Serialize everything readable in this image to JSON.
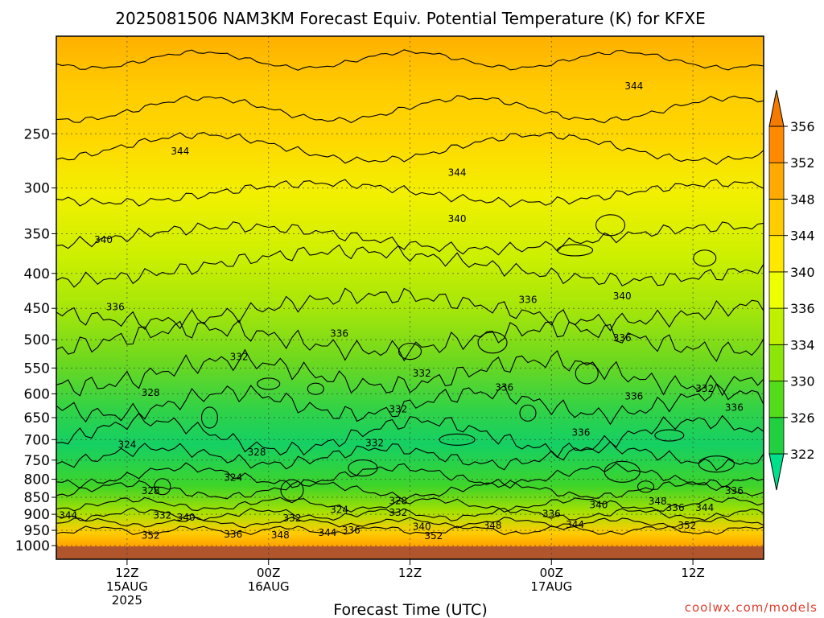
{
  "chart_data": {
    "type": "heatmap",
    "title": "2025081506 NAM3KM Forecast Equiv. Potential Temperature (K) for KFXE",
    "xlabel": "Forecast Time (UTC)",
    "ylabel": "",
    "y_axis": {
      "scale": "log-pressure",
      "range": [
        1000,
        180
      ],
      "tick_labels": [
        "250",
        "300",
        "350",
        "400",
        "450",
        "500",
        "550",
        "600",
        "650",
        "700",
        "750",
        "800",
        "850",
        "900",
        "950",
        "1000"
      ]
    },
    "x_axis": {
      "range_hours": [
        0,
        60
      ],
      "ticks": [
        {
          "hour": 6,
          "lines": [
            "12Z",
            "15AUG",
            "2025"
          ]
        },
        {
          "hour": 18,
          "lines": [
            "00Z",
            "16AUG"
          ]
        },
        {
          "hour": 30,
          "lines": [
            "12Z"
          ]
        },
        {
          "hour": 42,
          "lines": [
            "00Z",
            "17AUG"
          ]
        },
        {
          "hour": 54,
          "lines": [
            "12Z"
          ]
        }
      ]
    },
    "colorbar": {
      "levels": [
        "322",
        "326",
        "330",
        "334",
        "336",
        "340",
        "344",
        "348",
        "352",
        "356"
      ],
      "colors": [
        "#00e08a",
        "#20d040",
        "#54dc1a",
        "#8ce60a",
        "#bff000",
        "#eeff00",
        "#ffe800",
        "#ffcc00",
        "#ffaa00",
        "#ff8a00",
        "#f57a00"
      ]
    },
    "contour_labels": [
      {
        "text": "344",
        "hour": 10.5,
        "p": 265
      },
      {
        "text": "344",
        "hour": 34,
        "p": 285
      },
      {
        "text": "344",
        "hour": 49,
        "p": 213
      },
      {
        "text": "340",
        "hour": 4,
        "p": 357
      },
      {
        "text": "340",
        "hour": 34,
        "p": 333
      },
      {
        "text": "340",
        "hour": 48,
        "p": 432
      },
      {
        "text": "336",
        "hour": 5,
        "p": 448
      },
      {
        "text": "336",
        "hour": 24,
        "p": 490
      },
      {
        "text": "336",
        "hour": 40,
        "p": 437
      },
      {
        "text": "336",
        "hour": 48,
        "p": 497
      },
      {
        "text": "336",
        "hour": 38,
        "p": 587
      },
      {
        "text": "336",
        "hour": 49,
        "p": 605
      },
      {
        "text": "336",
        "hour": 57.5,
        "p": 628
      },
      {
        "text": "336",
        "hour": 44.5,
        "p": 683
      },
      {
        "text": "336",
        "hour": 57.5,
        "p": 832
      },
      {
        "text": "332",
        "hour": 15.5,
        "p": 530
      },
      {
        "text": "332",
        "hour": 31,
        "p": 560
      },
      {
        "text": "332",
        "hour": 29,
        "p": 632
      },
      {
        "text": "332",
        "hour": 27,
        "p": 708
      },
      {
        "text": "332",
        "hour": 55,
        "p": 590
      },
      {
        "text": "328",
        "hour": 8,
        "p": 598
      },
      {
        "text": "328",
        "hour": 17,
        "p": 730
      },
      {
        "text": "328",
        "hour": 8,
        "p": 832
      },
      {
        "text": "328",
        "hour": 29,
        "p": 860
      },
      {
        "text": "324",
        "hour": 6,
        "p": 712
      },
      {
        "text": "324",
        "hour": 15,
        "p": 795
      },
      {
        "text": "324",
        "hour": 24,
        "p": 886
      },
      {
        "text": "344",
        "hour": 1,
        "p": 904
      },
      {
        "text": "332",
        "hour": 9,
        "p": 903
      },
      {
        "text": "340",
        "hour": 11,
        "p": 910
      },
      {
        "text": "332",
        "hour": 20,
        "p": 912
      },
      {
        "text": "332",
        "hour": 29,
        "p": 895
      },
      {
        "text": "336",
        "hour": 42,
        "p": 898
      },
      {
        "text": "340",
        "hour": 46,
        "p": 872
      },
      {
        "text": "348",
        "hour": 51,
        "p": 862
      },
      {
        "text": "336",
        "hour": 52.5,
        "p": 880
      },
      {
        "text": "344",
        "hour": 55,
        "p": 880
      },
      {
        "text": "352",
        "hour": 8,
        "p": 967
      },
      {
        "text": "336",
        "hour": 15,
        "p": 963
      },
      {
        "text": "348",
        "hour": 19,
        "p": 965
      },
      {
        "text": "344",
        "hour": 23,
        "p": 958
      },
      {
        "text": "336",
        "hour": 25,
        "p": 950
      },
      {
        "text": "340",
        "hour": 31,
        "p": 938
      },
      {
        "text": "352",
        "hour": 32,
        "p": 968
      },
      {
        "text": "348",
        "hour": 37,
        "p": 935
      },
      {
        "text": "344",
        "hour": 44,
        "p": 932
      },
      {
        "text": "352",
        "hour": 53.5,
        "p": 935
      }
    ]
  },
  "credit": "coolwx.com/models"
}
